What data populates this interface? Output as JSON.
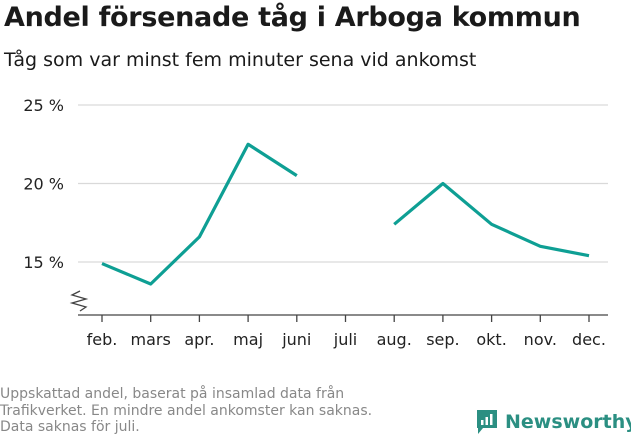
{
  "title": "Andel försenade tåg i Arboga kommun",
  "subtitle": "Tåg som var minst fem minuter sena vid ankomst",
  "footnote": [
    "Uppskattad andel, baserat på insamlad data från",
    "Trafikverket. En mindre andel ankomster kan saknas.",
    "Data saknas för juli."
  ],
  "brand": "Newsworthy",
  "colors": {
    "line": "#0e9f94",
    "grid": "#d9d9d9",
    "brand": "#2b8f82"
  },
  "icons": {
    "axis_break": "zigzag-break-icon",
    "logo": "newsworthy-logo-icon"
  },
  "chart_data": {
    "type": "line",
    "categories": [
      "feb.",
      "mars",
      "apr.",
      "maj",
      "juni",
      "juli",
      "aug.",
      "sep.",
      "okt.",
      "nov.",
      "dec."
    ],
    "series": [
      {
        "values": [
          14.9,
          13.6,
          16.6,
          22.5,
          20.5,
          null,
          17.4,
          20.0,
          17.4,
          16.0,
          15.4
        ]
      }
    ],
    "y_ticks": [
      15,
      20,
      25
    ],
    "y_tick_labels": [
      "15 %",
      "20 %",
      "25 %"
    ],
    "ylim": [
      12,
      25
    ],
    "y_axis_break": true,
    "grid": true
  }
}
